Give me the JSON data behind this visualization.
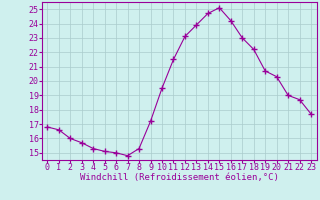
{
  "x": [
    0,
    1,
    2,
    3,
    4,
    5,
    6,
    7,
    8,
    9,
    10,
    11,
    12,
    13,
    14,
    15,
    16,
    17,
    18,
    19,
    20,
    21,
    22,
    23
  ],
  "y": [
    16.8,
    16.6,
    16.0,
    15.7,
    15.3,
    15.1,
    15.0,
    14.8,
    15.3,
    17.2,
    19.5,
    21.5,
    23.1,
    23.9,
    24.7,
    25.1,
    24.2,
    23.0,
    22.2,
    20.7,
    20.3,
    19.0,
    18.7,
    17.7
  ],
  "line_color": "#990099",
  "marker": "+",
  "marker_size": 4,
  "line_width": 0.8,
  "bg_color": "#cff0ee",
  "grid_color": "#aacccc",
  "xlabel": "Windchill (Refroidissement éolien,°C)",
  "xlabel_color": "#990099",
  "xlabel_fontsize": 6.5,
  "tick_color": "#990099",
  "tick_fontsize": 6.0,
  "ylim": [
    14.5,
    25.5
  ],
  "yticks": [
    15,
    16,
    17,
    18,
    19,
    20,
    21,
    22,
    23,
    24,
    25
  ],
  "xlim": [
    -0.5,
    23.5
  ],
  "xticks": [
    0,
    1,
    2,
    3,
    4,
    5,
    6,
    7,
    8,
    9,
    10,
    11,
    12,
    13,
    14,
    15,
    16,
    17,
    18,
    19,
    20,
    21,
    22,
    23
  ]
}
